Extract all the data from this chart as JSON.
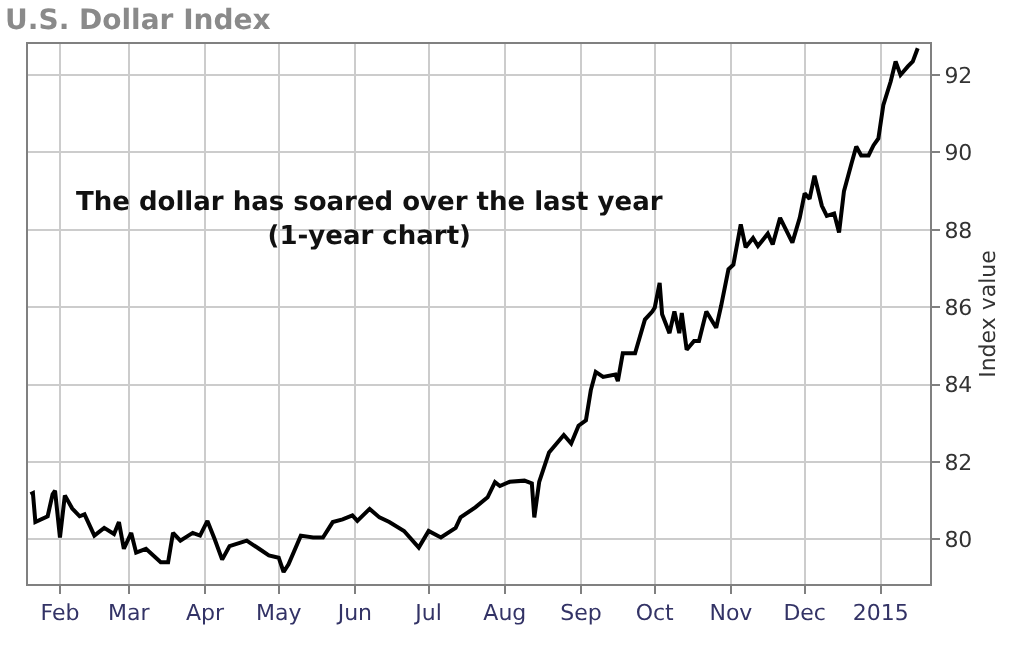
{
  "chart_data": {
    "type": "line",
    "title": "U.S. Dollar Index",
    "ylabel": "Index value",
    "annotations": [
      "The dollar has soared over the last year\n(1-year chart)"
    ],
    "x": [
      "2014-01-20",
      "2014-01-21",
      "2014-01-22",
      "2014-01-27",
      "2014-01-29",
      "2014-01-30",
      "2014-02-01",
      "2014-02-03",
      "2014-02-06",
      "2014-02-09",
      "2014-02-11",
      "2014-02-15",
      "2014-02-19",
      "2014-02-23",
      "2014-02-25",
      "2014-02-27",
      "2014-03-02",
      "2014-03-04",
      "2014-03-08",
      "2014-03-14",
      "2014-03-17",
      "2014-03-19",
      "2014-03-22",
      "2014-03-27",
      "2014-03-30",
      "2014-04-02",
      "2014-04-05",
      "2014-04-08",
      "2014-04-11",
      "2014-04-18",
      "2014-04-23",
      "2014-04-27",
      "2014-05-01",
      "2014-05-03",
      "2014-05-05",
      "2014-05-10",
      "2014-05-15",
      "2014-05-19",
      "2014-05-23",
      "2014-05-27",
      "2014-05-31",
      "2014-06-02",
      "2014-06-07",
      "2014-06-11",
      "2014-06-15",
      "2014-06-21",
      "2014-06-27",
      "2014-07-01",
      "2014-07-06",
      "2014-07-12",
      "2014-07-14",
      "2014-07-20",
      "2014-07-25",
      "2014-07-28",
      "2014-07-30",
      "2014-08-03",
      "2014-08-09",
      "2014-08-12",
      "2014-08-13",
      "2014-08-15",
      "2014-08-19",
      "2014-08-25",
      "2014-08-28",
      "2014-08-31",
      "2014-09-03",
      "2014-09-05",
      "2014-09-07",
      "2014-09-10",
      "2014-09-15",
      "2014-09-16",
      "2014-09-18",
      "2014-09-23",
      "2014-09-27",
      "2014-09-30",
      "2014-10-01",
      "2014-10-03",
      "2014-10-04",
      "2014-10-07",
      "2014-10-09",
      "2014-10-11",
      "2014-10-12",
      "2014-10-14",
      "2014-10-17",
      "2014-10-19",
      "2014-10-22",
      "2014-10-26",
      "2014-10-28",
      "2014-10-31",
      "2014-11-02",
      "2014-11-05",
      "2014-11-07",
      "2014-11-10",
      "2014-11-12",
      "2014-11-16",
      "2014-11-18",
      "2014-11-21",
      "2014-11-26",
      "2014-11-29",
      "2014-12-01",
      "2014-12-03",
      "2014-12-05",
      "2014-12-08",
      "2014-12-10",
      "2014-12-13",
      "2014-12-15",
      "2014-12-17",
      "2014-12-20",
      "2014-12-22",
      "2014-12-24",
      "2014-12-27",
      "2014-12-29",
      "2014-12-31",
      "2015-01-02",
      "2015-01-05",
      "2015-01-07",
      "2015-01-09",
      "2015-01-12",
      "2015-01-14",
      "2015-01-16"
    ],
    "series": [
      {
        "color": "#000000",
        "values": [
          81.17,
          81.2,
          80.45,
          80.6,
          81.17,
          81.26,
          80.05,
          81.14,
          80.8,
          80.6,
          80.65,
          80.1,
          80.3,
          80.14,
          80.45,
          79.76,
          80.17,
          79.66,
          79.76,
          79.41,
          79.41,
          80.17,
          79.97,
          80.17,
          80.1,
          80.48,
          80.0,
          79.48,
          79.83,
          79.97,
          79.76,
          79.59,
          79.53,
          79.16,
          79.36,
          80.1,
          80.05,
          80.05,
          80.45,
          80.52,
          80.62,
          80.48,
          80.79,
          80.57,
          80.45,
          80.22,
          79.79,
          80.22,
          80.05,
          80.3,
          80.57,
          80.83,
          81.09,
          81.48,
          81.38,
          81.49,
          81.52,
          81.45,
          80.57,
          81.49,
          82.25,
          82.7,
          82.48,
          82.94,
          83.08,
          83.86,
          84.33,
          84.2,
          84.26,
          84.09,
          84.81,
          84.81,
          85.68,
          85.89,
          85.99,
          86.63,
          85.82,
          85.33,
          85.89,
          85.33,
          85.85,
          84.9,
          85.13,
          85.13,
          85.89,
          85.47,
          86.03,
          86.98,
          87.1,
          88.14,
          87.55,
          87.79,
          87.58,
          87.9,
          87.62,
          88.31,
          87.67,
          88.31,
          88.94,
          88.8,
          89.4,
          88.62,
          88.36,
          88.42,
          87.93,
          89.0,
          89.7,
          90.15,
          89.92,
          89.92,
          90.18,
          90.36,
          91.22,
          91.83,
          92.35,
          92.0,
          92.22,
          92.35,
          92.69
        ]
      }
    ],
    "xlim": [
      "2014-01-19",
      "2015-01-21"
    ],
    "xticks": [
      {
        "value": "2014-02-01",
        "label": "Feb"
      },
      {
        "value": "2014-03-01",
        "label": "Mar"
      },
      {
        "value": "2014-04-01",
        "label": "Apr"
      },
      {
        "value": "2014-05-01",
        "label": "May"
      },
      {
        "value": "2014-06-01",
        "label": "Jun"
      },
      {
        "value": "2014-07-01",
        "label": "Jul"
      },
      {
        "value": "2014-08-01",
        "label": "Aug"
      },
      {
        "value": "2014-09-01",
        "label": "Sep"
      },
      {
        "value": "2014-10-01",
        "label": "Oct"
      },
      {
        "value": "2014-11-01",
        "label": "Nov"
      },
      {
        "value": "2014-12-01",
        "label": "Dec"
      },
      {
        "value": "2015-01-01",
        "label": "2015"
      }
    ],
    "ylim": [
      78.85,
      92.8
    ],
    "yticks": [
      80,
      82,
      84,
      86,
      88,
      90,
      92
    ],
    "grid": true,
    "marker": "none",
    "line_style": "solid"
  }
}
